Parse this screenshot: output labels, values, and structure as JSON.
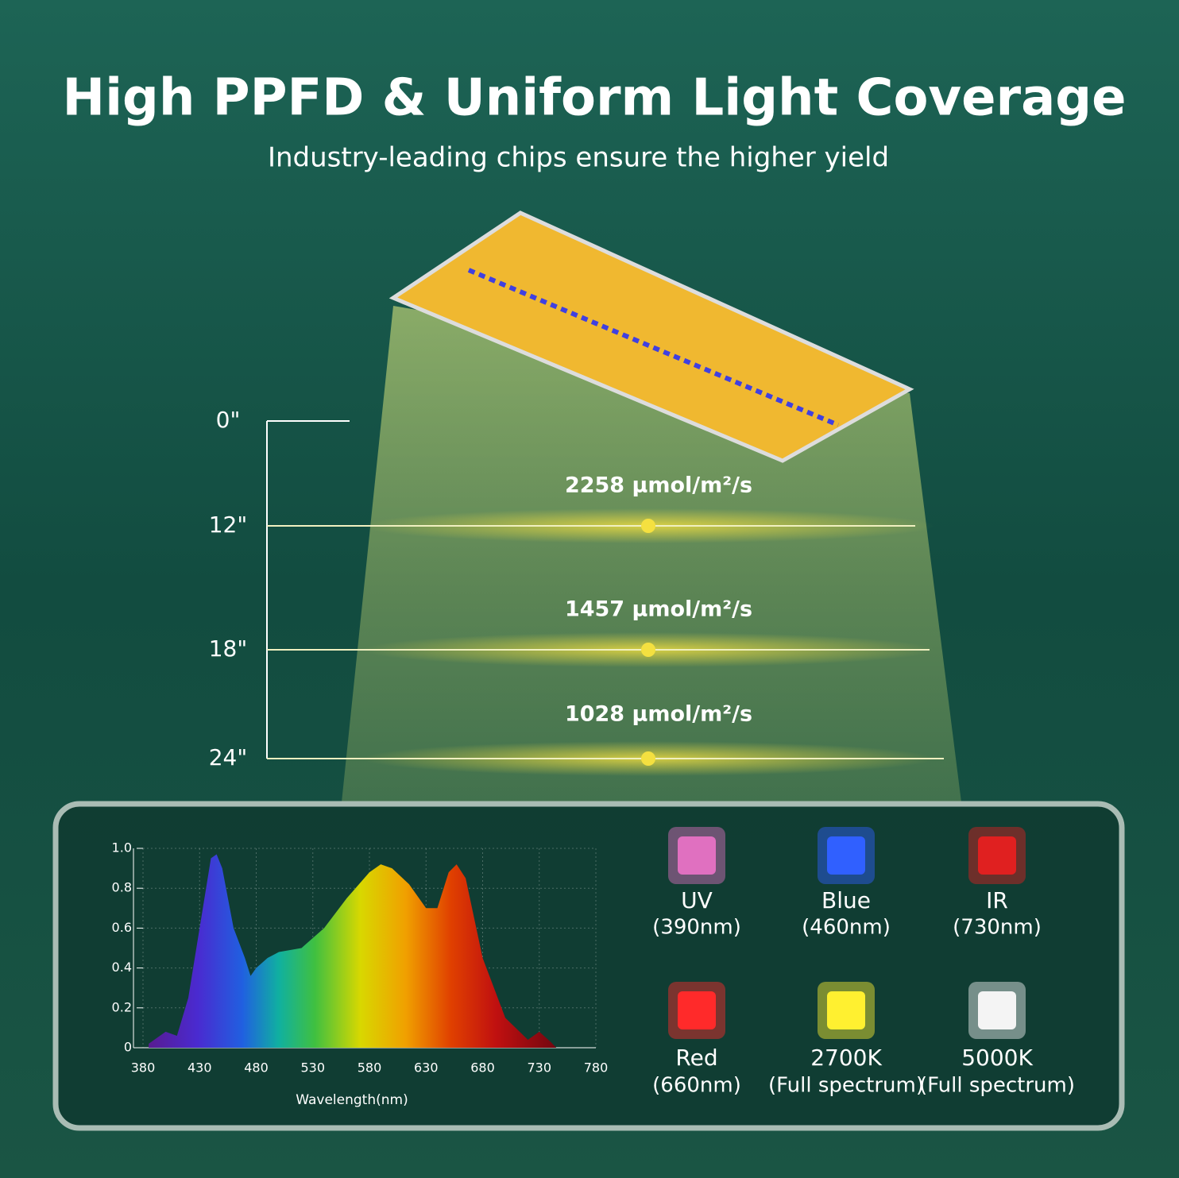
{
  "header": {
    "title": "High PPFD & Uniform Light Coverage",
    "subtitle": "Industry-leading chips ensure the higher yield"
  },
  "ppfd": {
    "heights": [
      "0\"",
      "12\"",
      "18\"",
      "24\""
    ],
    "levels": [
      {
        "height": "12\"",
        "value": "2258 µmol/m²/s"
      },
      {
        "height": "18\"",
        "value": "1457 µmol/m²/s"
      },
      {
        "height": "24\"",
        "value": "1028 µmol/m²/s"
      }
    ]
  },
  "chart_data": {
    "type": "area",
    "x_label": "Wavelength(nm)",
    "x": [
      385,
      400,
      410,
      420,
      430,
      440,
      445,
      450,
      460,
      470,
      475,
      480,
      490,
      500,
      520,
      540,
      560,
      580,
      590,
      600,
      615,
      630,
      640,
      650,
      657,
      665,
      680,
      700,
      720,
      730,
      740,
      745
    ],
    "values": [
      0.02,
      0.08,
      0.06,
      0.25,
      0.6,
      0.95,
      0.97,
      0.9,
      0.6,
      0.45,
      0.36,
      0.4,
      0.45,
      0.48,
      0.5,
      0.6,
      0.75,
      0.88,
      0.92,
      0.9,
      0.82,
      0.7,
      0.7,
      0.88,
      0.92,
      0.85,
      0.45,
      0.15,
      0.04,
      0.08,
      0.03,
      0
    ],
    "xlim": [
      380,
      780
    ],
    "xticks": [
      380,
      430,
      480,
      530,
      580,
      630,
      680,
      730,
      780
    ],
    "ylim": [
      0,
      1
    ],
    "yticks": [
      0,
      0.2,
      0.4,
      0.6,
      0.8,
      {
        "value": 1,
        "label": "1.0"
      }
    ],
    "grid": true
  },
  "chips": [
    {
      "name": "UV",
      "spec": "(390nm)",
      "color": "#e070c0"
    },
    {
      "name": "Blue",
      "spec": "(460nm)",
      "color": "#3060ff"
    },
    {
      "name": "IR",
      "spec": "(730nm)",
      "color": "#e02020"
    },
    {
      "name": "Red",
      "spec": "(660nm)",
      "color": "#ff2a2a"
    },
    {
      "name": "2700K",
      "spec": "(Full spectrum)",
      "color": "#fff030"
    },
    {
      "name": "5000K",
      "spec": "(Full spectrum)",
      "color": "#f4f4f4"
    }
  ]
}
